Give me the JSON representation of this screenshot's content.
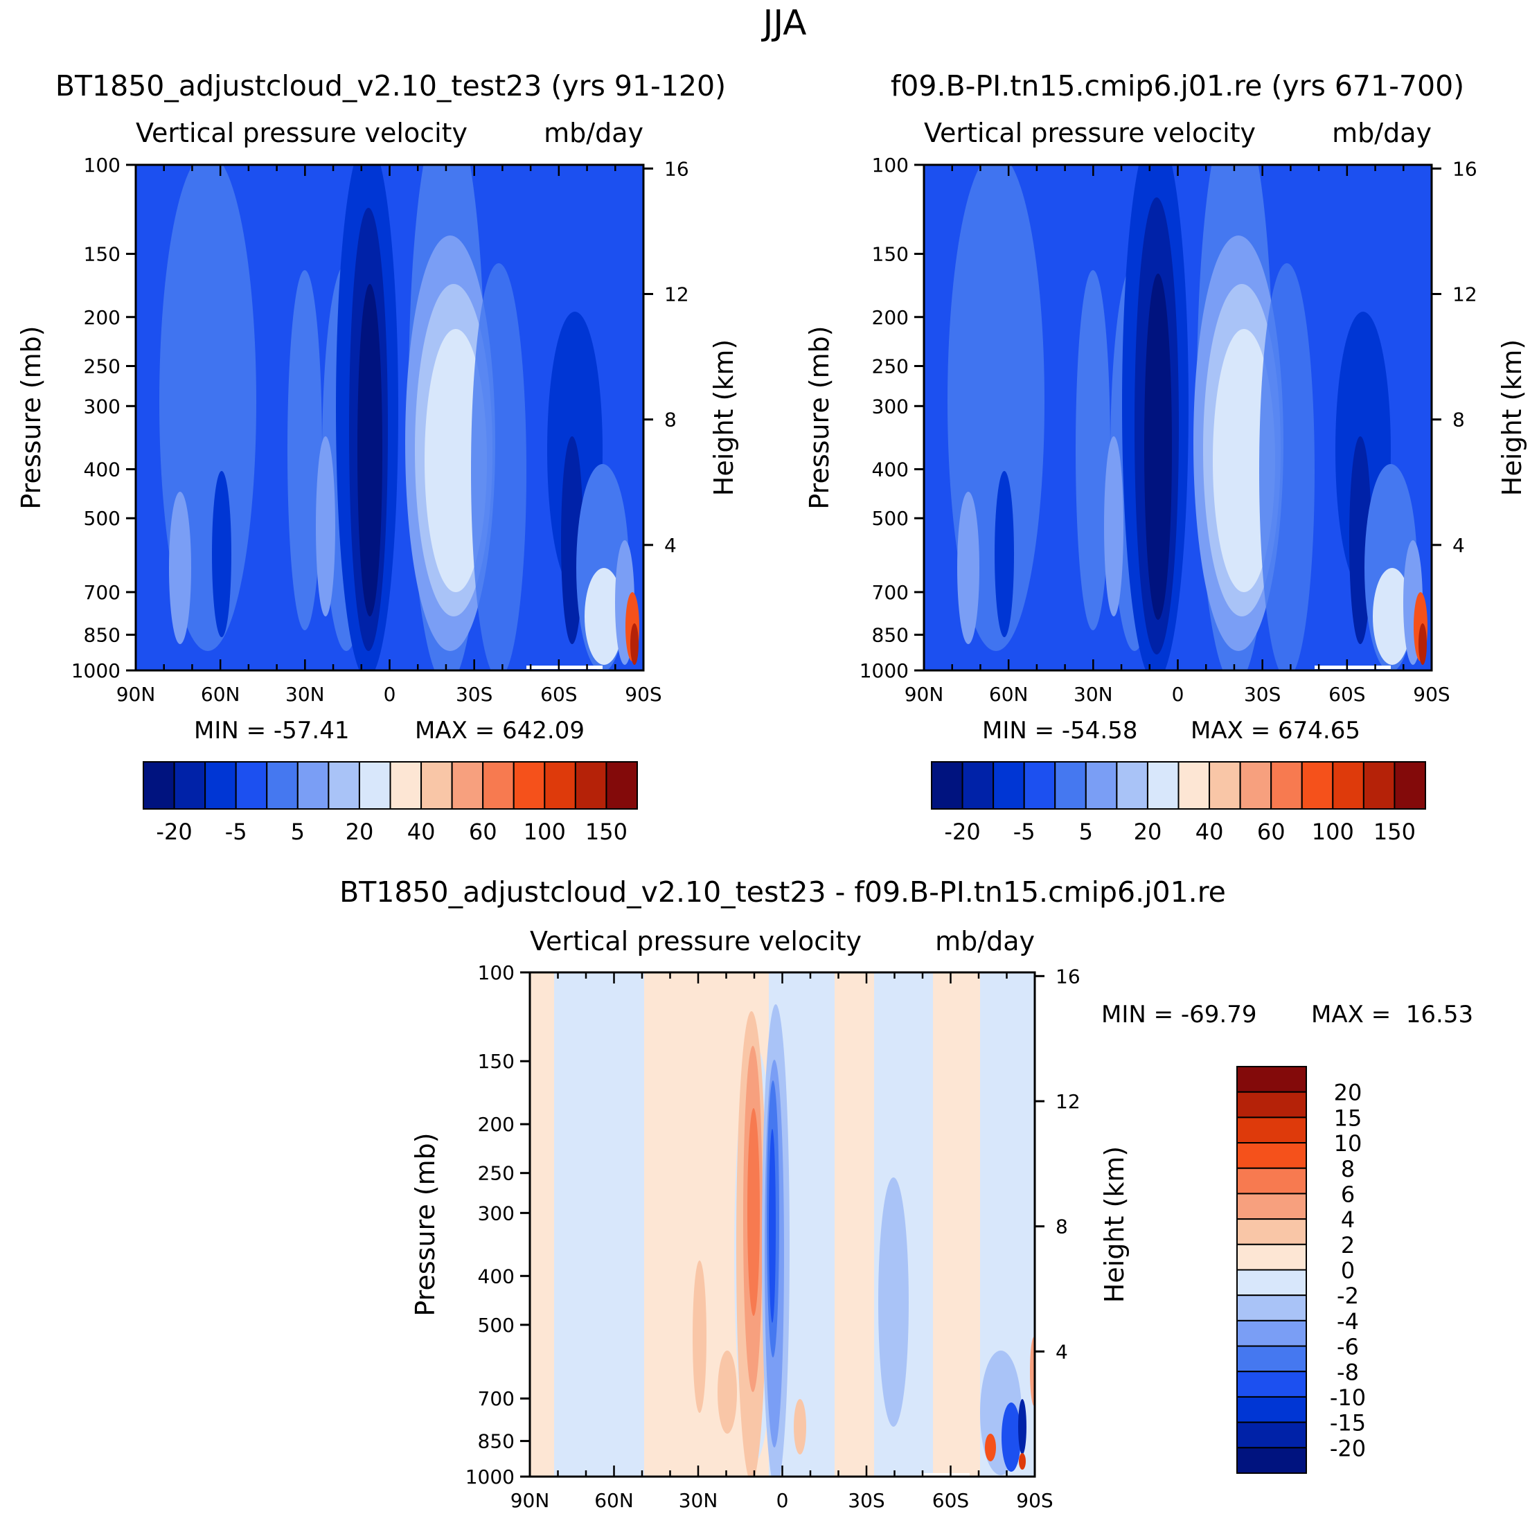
{
  "figure_title": "JJA",
  "chart_data": [
    {
      "type": "heatmap",
      "title": "BT1850_adjustcloud_v2.10_test23 (yrs 91-120)",
      "subtitle": "Vertical pressure velocity",
      "units": "mb/day",
      "xlabel": "",
      "ylabel": "Pressure (mb)",
      "ylabel_right": "Height (km)",
      "x_ticks": [
        "90N",
        "60N",
        "30N",
        "0",
        "30S",
        "60S",
        "90S"
      ],
      "y_ticks": [
        100,
        150,
        200,
        250,
        300,
        400,
        500,
        700,
        850,
        1000
      ],
      "y_right_ticks": [
        16,
        12,
        8,
        4
      ],
      "min_label": "MIN = -57.41",
      "max_label": "MAX = 642.09",
      "min": -57.41,
      "max": 642.09,
      "colorbar_labels": [
        "-20",
        "-5",
        "5",
        "20",
        "40",
        "60",
        "100",
        "150"
      ]
    },
    {
      "type": "heatmap",
      "title": "f09.B-PI.tn15.cmip6.j01.re (yrs 671-700)",
      "subtitle": "Vertical pressure velocity",
      "units": "mb/day",
      "xlabel": "",
      "ylabel": "Pressure (mb)",
      "ylabel_right": "Height (km)",
      "x_ticks": [
        "90N",
        "60N",
        "30N",
        "0",
        "30S",
        "60S",
        "90S"
      ],
      "y_ticks": [
        100,
        150,
        200,
        250,
        300,
        400,
        500,
        700,
        850,
        1000
      ],
      "y_right_ticks": [
        16,
        12,
        8,
        4
      ],
      "min_label": "MIN = -54.58",
      "max_label": "MAX = 674.65",
      "min": -54.58,
      "max": 674.65,
      "colorbar_labels": [
        "-20",
        "-5",
        "5",
        "20",
        "40",
        "60",
        "100",
        "150"
      ]
    },
    {
      "type": "heatmap",
      "title": "BT1850_adjustcloud_v2.10_test23 - f09.B-PI.tn15.cmip6.j01.re",
      "subtitle": "Vertical pressure velocity",
      "units": "mb/day",
      "xlabel": "",
      "ylabel": "Pressure (mb)",
      "ylabel_right": "Height (km)",
      "x_ticks": [
        "90N",
        "60N",
        "30N",
        "0",
        "30S",
        "60S",
        "90S"
      ],
      "y_ticks": [
        100,
        150,
        200,
        250,
        300,
        400,
        500,
        700,
        850,
        1000
      ],
      "y_right_ticks": [
        16,
        12,
        8,
        4
      ],
      "min_label": "MIN = -69.79",
      "max_label": "MAX =  16.53",
      "min": -69.79,
      "max": 16.53,
      "colorbar_labels": [
        "20",
        "15",
        "10",
        "8",
        "6",
        "4",
        "2",
        "0",
        "-2",
        "-4",
        "-6",
        "-8",
        "-10",
        "-15",
        "-20"
      ]
    }
  ],
  "palette_abs": [
    "#00137f",
    "#0022a8",
    "#0036d4",
    "#1c50f0",
    "#4578f0",
    "#7a9ef5",
    "#a9c3f7",
    "#d8e7fb",
    "#fde6d4",
    "#f9c6a7",
    "#f7a07e",
    "#f77a50",
    "#f5511b",
    "#de3a0b",
    "#b52208",
    "#830a0a"
  ],
  "palette_diff": [
    "#00137f",
    "#0022a8",
    "#0036d4",
    "#1c50f0",
    "#4578f0",
    "#7a9ef5",
    "#a9c3f7",
    "#d8e7fb",
    "#fde6d4",
    "#f9c6a7",
    "#f7a07e",
    "#f77a50",
    "#f5511b",
    "#de3a0b",
    "#b52208",
    "#830a0a"
  ]
}
